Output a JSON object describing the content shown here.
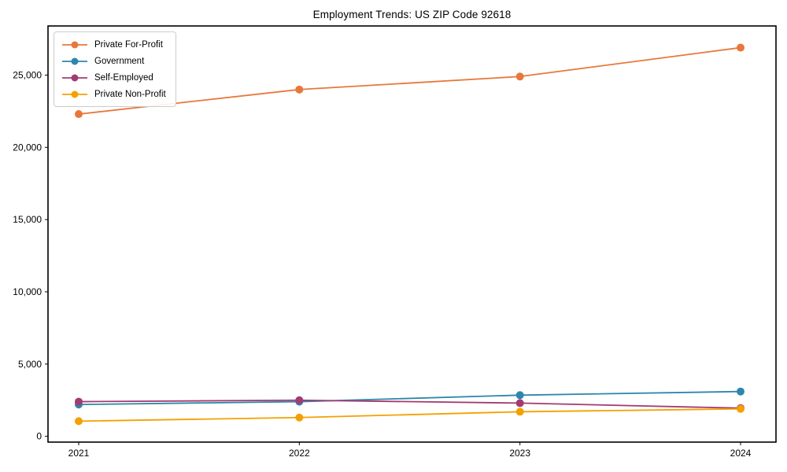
{
  "figure": {
    "background": "#ffffff",
    "spine_color": "#000000"
  },
  "chart_data": {
    "type": "line",
    "title": "Employment Trends: US ZIP Code 92618",
    "xlabel": "",
    "ylabel": "",
    "categories": [
      "2021",
      "2022",
      "2023",
      "2024"
    ],
    "series": [
      {
        "name": "Private For-Profit",
        "color": "#E8773B",
        "values": [
          22300,
          24000,
          24900,
          26900
        ]
      },
      {
        "name": "Government",
        "color": "#2E86AB",
        "values": [
          2200,
          2400,
          2850,
          3100
        ]
      },
      {
        "name": "Self-Employed",
        "color": "#A23B72",
        "values": [
          2400,
          2500,
          2300,
          1950
        ]
      },
      {
        "name": "Private Non-Profit",
        "color": "#F4A100",
        "values": [
          1050,
          1300,
          1700,
          1900
        ]
      }
    ],
    "ylim": [
      -400,
      28400
    ],
    "yticks": [
      {
        "value": 0,
        "label": "0"
      },
      {
        "value": 5000,
        "label": "5,000"
      },
      {
        "value": 10000,
        "label": "10,000"
      },
      {
        "value": 15000,
        "label": "15,000"
      },
      {
        "value": 20000,
        "label": "20,000"
      },
      {
        "value": 25000,
        "label": "25,000"
      }
    ],
    "grid": false,
    "marker": "circle",
    "legend": {
      "position": "upper-left",
      "entries": [
        "Private For-Profit",
        "Government",
        "Self-Employed",
        "Private Non-Profit"
      ]
    }
  }
}
